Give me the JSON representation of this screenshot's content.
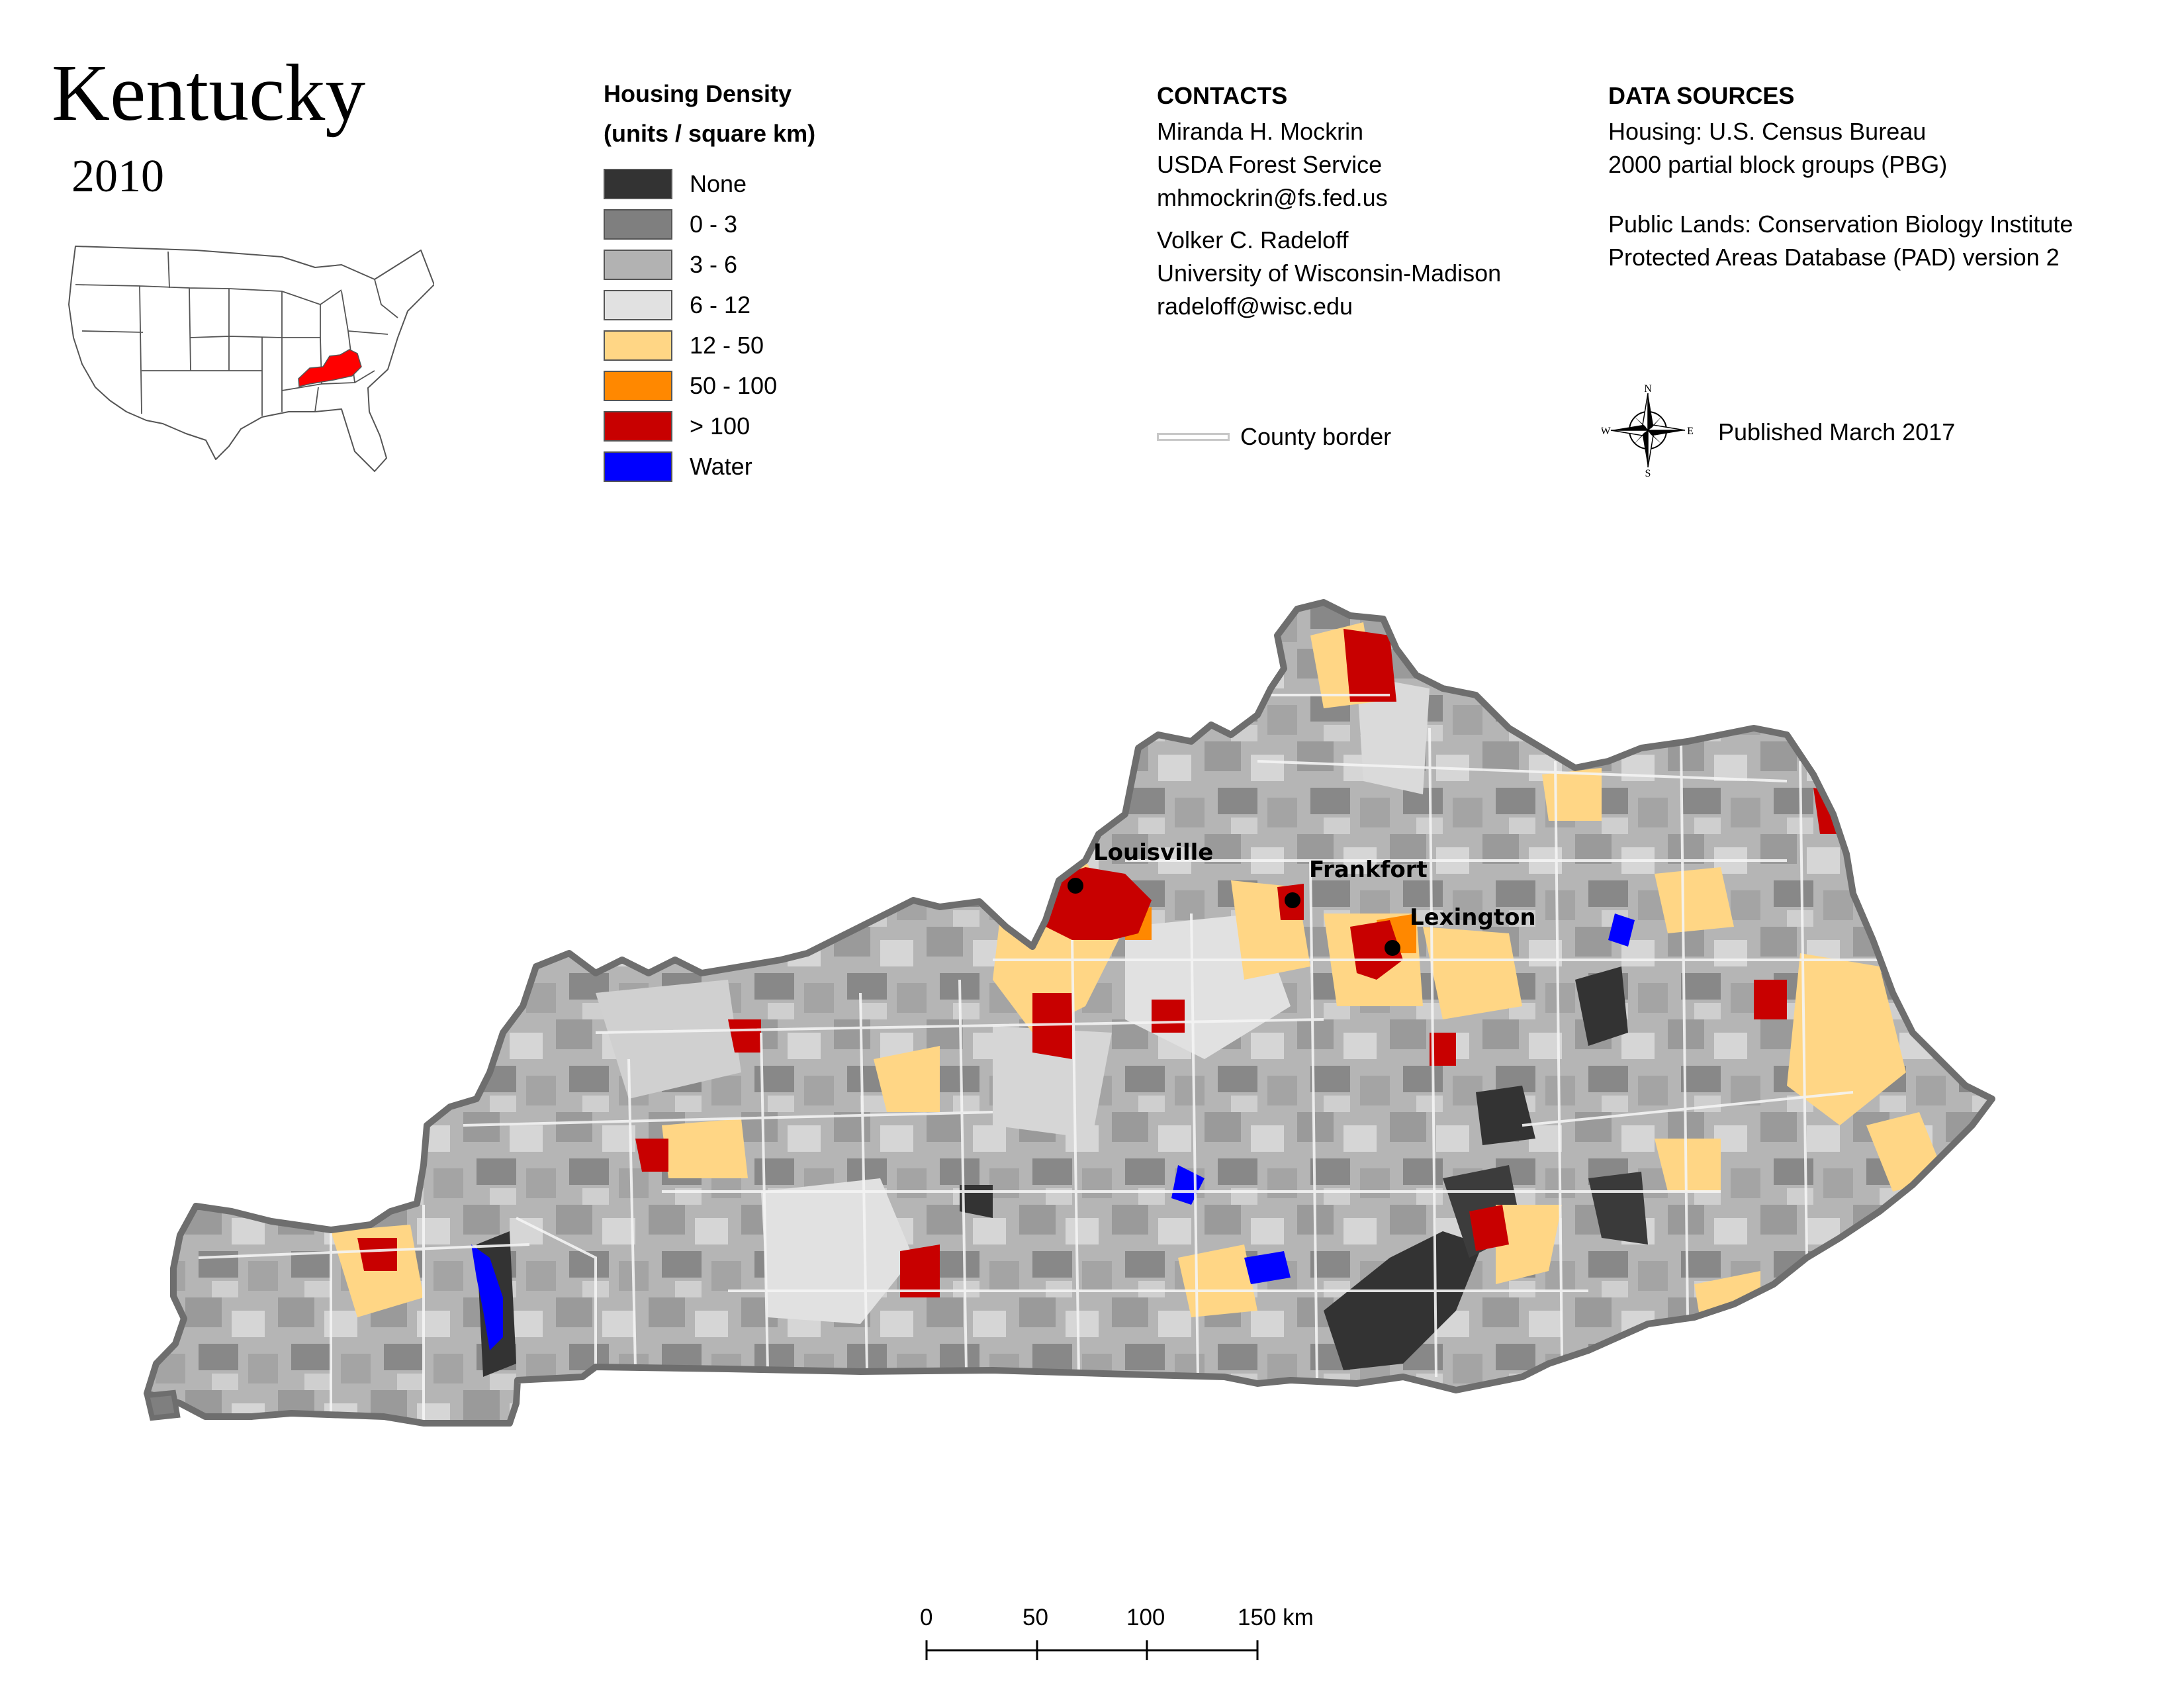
{
  "header": {
    "title": "Kentucky",
    "year": "2010"
  },
  "legend": {
    "title_line1": "Housing Density",
    "title_line2": "(units / square km)",
    "items": [
      {
        "label": "None",
        "color": "#333333"
      },
      {
        "label": "0 - 3",
        "color": "#7f7f7f"
      },
      {
        "label": "3 - 6",
        "color": "#b2b2b2"
      },
      {
        "label": "6 - 12",
        "color": "#e1e1e1"
      },
      {
        "label": "12 - 50",
        "color": "#ffd685"
      },
      {
        "label": "50 - 100",
        "color": "#ff8800"
      },
      {
        "label": "> 100",
        "color": "#c80000"
      },
      {
        "label": "Water",
        "color": "#0000ff"
      }
    ]
  },
  "contacts": {
    "heading": "CONTACTS",
    "lines1": [
      "Miranda H. Mockrin",
      "USDA Forest Service",
      "mhmockrin@fs.fed.us"
    ],
    "lines2": [
      "Volker C. Radeloff",
      "University of Wisconsin-Madison",
      "radeloff@wisc.edu"
    ],
    "county_border_label": "County border"
  },
  "sources": {
    "heading": "DATA SOURCES",
    "lines1": [
      "Housing: U.S. Census Bureau",
      "2000 partial block groups (PBG)"
    ],
    "lines2": [
      "Public Lands: Conservation Biology Institute",
      "Protected Areas Database (PAD) version 2"
    ],
    "published": "Published March 2017"
  },
  "compass": {
    "n": "N",
    "s": "S",
    "e": "E",
    "w": "W"
  },
  "cities": [
    {
      "name": "Louisville"
    },
    {
      "name": "Frankfort"
    },
    {
      "name": "Lexington"
    }
  ],
  "scale_bar": {
    "ticks": [
      "0",
      "50",
      "100",
      "150 km"
    ]
  },
  "inset": {
    "highlight_color": "#ff0000"
  }
}
